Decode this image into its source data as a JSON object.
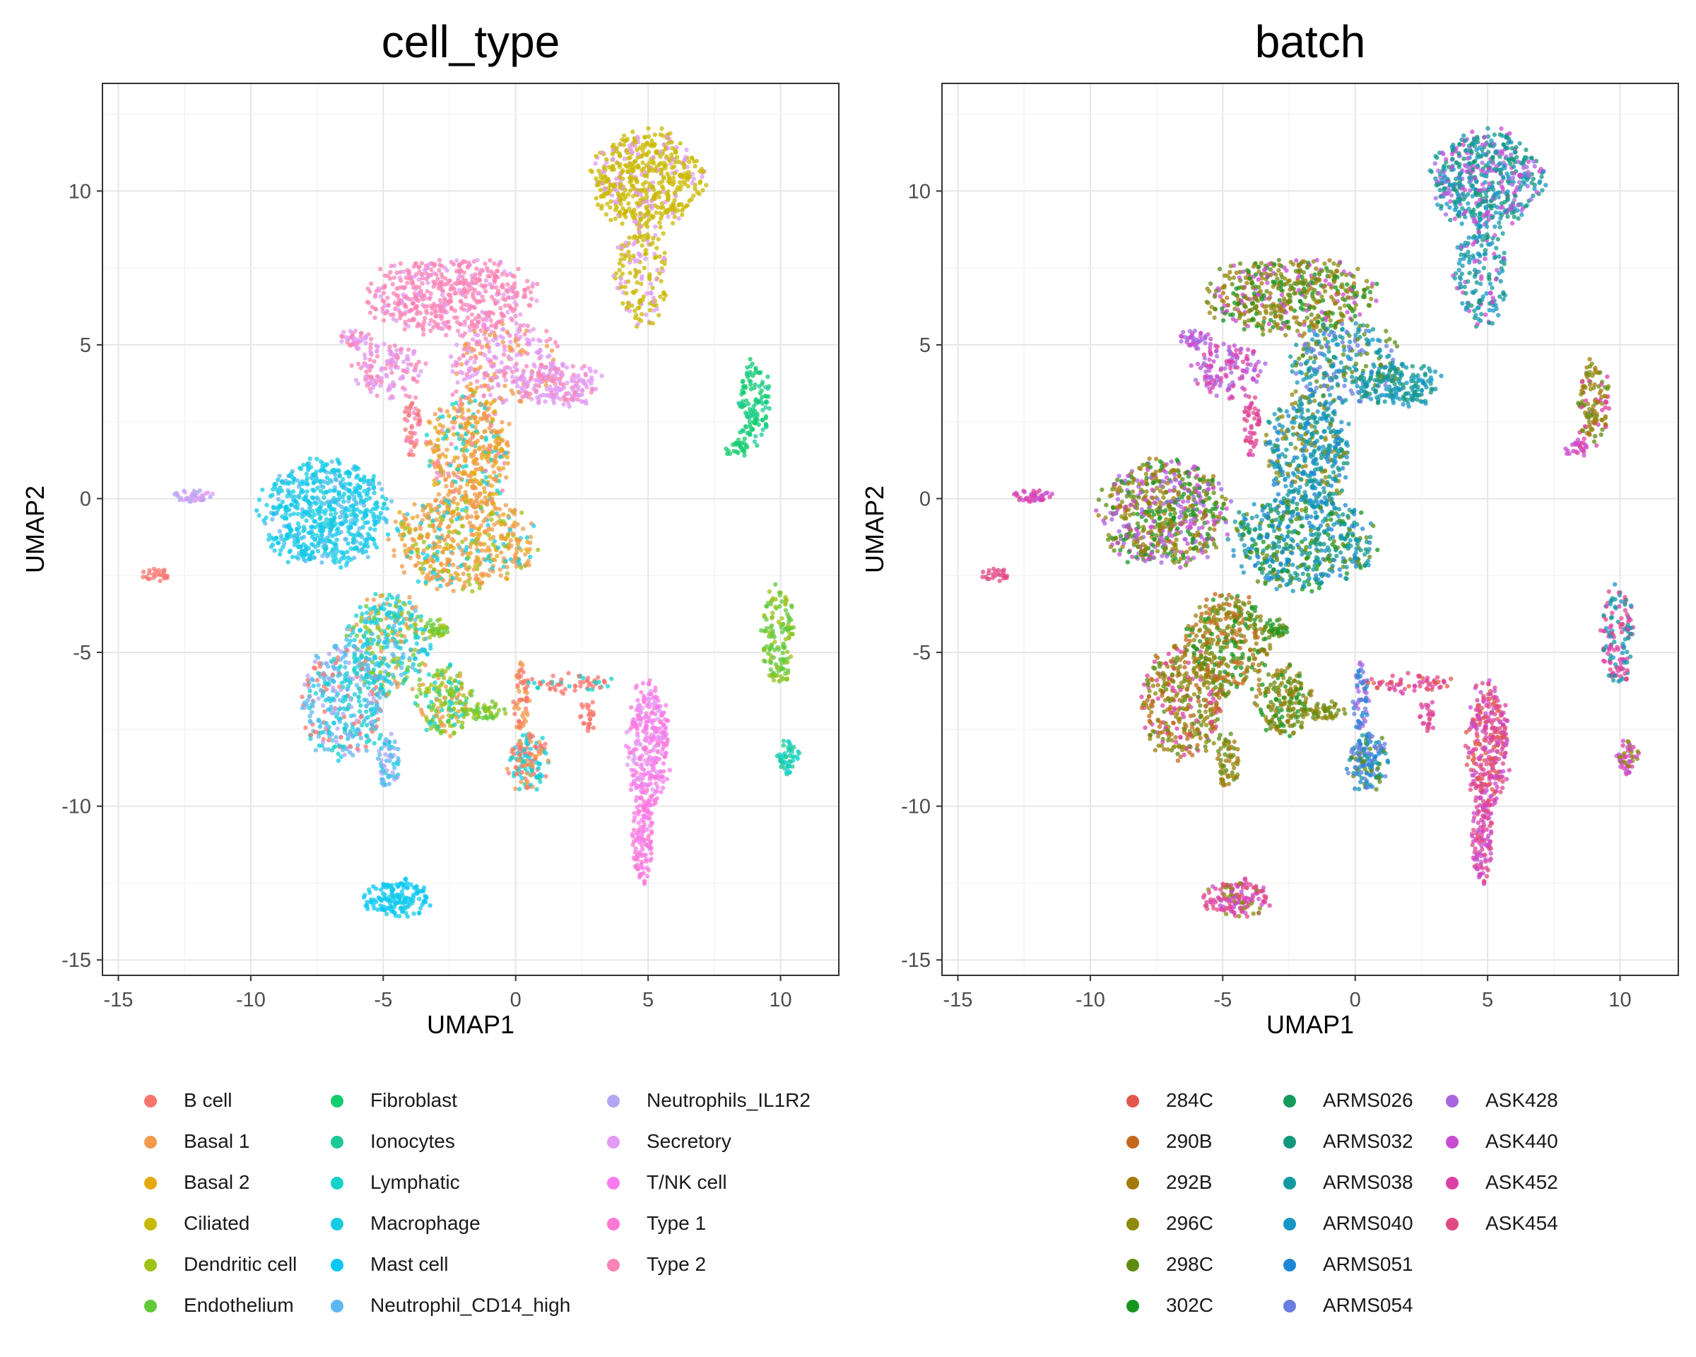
{
  "chart_data": [
    {
      "type": "scatter",
      "title": "cell_type",
      "xlabel": "UMAP1",
      "ylabel": "UMAP2",
      "xlim": [
        -15.6,
        12.2
      ],
      "ylim": [
        -15.5,
        13.5
      ],
      "xticks": [
        -15,
        -10,
        -5,
        0,
        5,
        10
      ],
      "yticks": [
        -15,
        -10,
        -5,
        0,
        5,
        10
      ],
      "xtick_labels": [
        "-15",
        "-10",
        "-5",
        "0",
        "5",
        "10"
      ],
      "ytick_labels": [
        "-15",
        "-10",
        "-5",
        "0",
        "5",
        "10"
      ],
      "grid": true,
      "legend_position": "bottom",
      "legend_columns": [
        [
          {
            "name": "B cell",
            "color": "#F8766D"
          },
          {
            "name": "Basal 1",
            "color": "#F2994A"
          },
          {
            "name": "Basal 2",
            "color": "#E5A910"
          },
          {
            "name": "Ciliated",
            "color": "#C9B800"
          },
          {
            "name": "Dendritic cell",
            "color": "#9FC217"
          },
          {
            "name": "Endothelium",
            "color": "#62C939"
          }
        ],
        [
          {
            "name": "Fibroblast",
            "color": "#13CC6E"
          },
          {
            "name": "Ionocytes",
            "color": "#1CC999"
          },
          {
            "name": "Lymphatic",
            "color": "#14D2C9"
          },
          {
            "name": "Macrophage",
            "color": "#17CBE3"
          },
          {
            "name": "Mast cell",
            "color": "#09C7F4"
          },
          {
            "name": "Neutrophil_CD14_high",
            "color": "#5BB8EE"
          }
        ],
        [
          {
            "name": "Neutrophils_IL1R2",
            "color": "#B4A6F3"
          },
          {
            "name": "Secretory",
            "color": "#E29AF2"
          },
          {
            "name": "T/NK cell",
            "color": "#FA7BEE"
          },
          {
            "name": "Type 1",
            "color": "#FA79D4"
          },
          {
            "name": "Type 2",
            "color": "#F984B6"
          }
        ]
      ],
      "clusters": [
        {
          "cx": 5.0,
          "cy": 10.4,
          "rx": 2.0,
          "ry": 1.5,
          "n": 520,
          "colors": [
            "#C9B800",
            "#C9B800",
            "#C9B800",
            "#C9B800",
            "#E29AF2"
          ]
        },
        {
          "cx": 4.8,
          "cy": 7.4,
          "rx": 1.0,
          "ry": 1.7,
          "n": 170,
          "colors": [
            "#C9B800",
            "#C9B800",
            "#E29AF2"
          ]
        },
        {
          "cx": -2.5,
          "cy": 6.6,
          "rx": 3.1,
          "ry": 1.2,
          "n": 520,
          "colors": [
            "#F984B6",
            "#F984B6",
            "#F984B6",
            "#F984B6",
            "#E29AF2"
          ]
        },
        {
          "cx": -0.4,
          "cy": 4.4,
          "rx": 2.0,
          "ry": 1.3,
          "n": 280,
          "colors": [
            "#E29AF2",
            "#E29AF2",
            "#F984B6",
            "#F2994A"
          ]
        },
        {
          "cx": 1.6,
          "cy": 3.7,
          "rx": 1.6,
          "ry": 0.7,
          "n": 170,
          "colors": [
            "#E29AF2",
            "#E29AF2",
            "#E29AF2",
            "#F984B6"
          ]
        },
        {
          "cx": -4.8,
          "cy": 4.2,
          "rx": 1.3,
          "ry": 0.9,
          "n": 130,
          "colors": [
            "#F984B6",
            "#E29AF2"
          ]
        },
        {
          "cx": -6.0,
          "cy": 5.2,
          "rx": 0.6,
          "ry": 0.3,
          "n": 40,
          "colors": [
            "#F984B6",
            "#E29AF2"
          ]
        },
        {
          "cx": -1.8,
          "cy": 1.6,
          "rx": 1.5,
          "ry": 1.9,
          "n": 420,
          "colors": [
            "#F2994A",
            "#F2994A",
            "#F2994A",
            "#E5A910",
            "#E5A910",
            "#F984B6",
            "#14D2C9"
          ]
        },
        {
          "cx": -2.0,
          "cy": -1.4,
          "rx": 2.6,
          "ry": 1.5,
          "n": 520,
          "colors": [
            "#F2994A",
            "#F2994A",
            "#F2994A",
            "#E5A910",
            "#17CBE3",
            "#9FC217"
          ]
        },
        {
          "cx": -3.9,
          "cy": 2.4,
          "rx": 0.3,
          "ry": 0.9,
          "n": 50,
          "colors": [
            "#F8766D",
            "#F984B6"
          ]
        },
        {
          "cx": -7.2,
          "cy": -0.5,
          "rx": 2.3,
          "ry": 1.7,
          "n": 650,
          "colors": [
            "#17CBE3",
            "#17CBE3",
            "#17CBE3",
            "#17CBE3",
            "#09C7F4",
            "#5BB8EE"
          ]
        },
        {
          "cx": -4.8,
          "cy": -4.7,
          "rx": 1.5,
          "ry": 1.6,
          "n": 340,
          "colors": [
            "#17CBE3",
            "#17CBE3",
            "#62C939",
            "#9FC217",
            "#14D2C9",
            "#F2994A",
            "#5BB8EE"
          ]
        },
        {
          "cx": -6.5,
          "cy": -6.6,
          "rx": 1.5,
          "ry": 1.8,
          "n": 380,
          "colors": [
            "#5BB8EE",
            "#5BB8EE",
            "#17CBE3",
            "#14D2C9",
            "#F8766D",
            "#B4A6F3"
          ]
        },
        {
          "cx": -4.8,
          "cy": -8.6,
          "rx": 0.4,
          "ry": 0.9,
          "n": 60,
          "colors": [
            "#5BB8EE",
            "#17CBE3",
            "#B4A6F3"
          ]
        },
        {
          "cx": -2.7,
          "cy": -6.6,
          "rx": 1.0,
          "ry": 1.1,
          "n": 180,
          "colors": [
            "#62C939",
            "#9FC217",
            "#9FC217",
            "#14D2C9",
            "#F2994A"
          ]
        },
        {
          "cx": -1.2,
          "cy": -6.9,
          "rx": 0.8,
          "ry": 0.3,
          "n": 50,
          "colors": [
            "#9FC217",
            "#62C939"
          ]
        },
        {
          "cx": -3.0,
          "cy": -4.2,
          "rx": 0.5,
          "ry": 0.3,
          "n": 35,
          "colors": [
            "#62C939",
            "#9FC217"
          ]
        },
        {
          "cx": 0.5,
          "cy": -8.6,
          "rx": 0.8,
          "ry": 0.9,
          "n": 150,
          "colors": [
            "#F2994A",
            "#F8766D",
            "#14D2C9",
            "#17CBE3"
          ]
        },
        {
          "cx": 0.2,
          "cy": -6.5,
          "rx": 0.3,
          "ry": 1.2,
          "n": 60,
          "colors": [
            "#F8766D",
            "#F2994A"
          ]
        },
        {
          "cx": 2.0,
          "cy": -6.0,
          "rx": 1.6,
          "ry": 0.3,
          "n": 60,
          "colors": [
            "#F8766D",
            "#F8766D",
            "#14D2C9"
          ]
        },
        {
          "cx": 2.7,
          "cy": -7.0,
          "rx": 0.3,
          "ry": 0.6,
          "n": 25,
          "colors": [
            "#F8766D"
          ]
        },
        {
          "cx": 5.0,
          "cy": -8.0,
          "rx": 0.8,
          "ry": 2.0,
          "n": 300,
          "colors": [
            "#FA7BEE",
            "#FA7BEE",
            "#FA79D4",
            "#E29AF2"
          ]
        },
        {
          "cx": 4.8,
          "cy": -11.0,
          "rx": 0.4,
          "ry": 1.5,
          "n": 120,
          "colors": [
            "#FA7BEE",
            "#FA79D4"
          ]
        },
        {
          "cx": -4.5,
          "cy": -13.0,
          "rx": 1.2,
          "ry": 0.6,
          "n": 150,
          "colors": [
            "#09C7F4",
            "#09C7F4",
            "#17CBE3"
          ]
        },
        {
          "cx": 9.0,
          "cy": 3.1,
          "rx": 0.6,
          "ry": 1.3,
          "n": 120,
          "colors": [
            "#13CC6E",
            "#13CC6E",
            "#1CC999"
          ]
        },
        {
          "cx": 8.4,
          "cy": 1.6,
          "rx": 0.5,
          "ry": 0.3,
          "n": 25,
          "colors": [
            "#13CC6E"
          ]
        },
        {
          "cx": 9.9,
          "cy": -4.5,
          "rx": 0.6,
          "ry": 1.6,
          "n": 140,
          "colors": [
            "#62C939",
            "#62C939",
            "#9FC217"
          ]
        },
        {
          "cx": 10.3,
          "cy": -8.4,
          "rx": 0.4,
          "ry": 0.6,
          "n": 50,
          "colors": [
            "#14D2C9",
            "#1CC999"
          ]
        },
        {
          "cx": -12.2,
          "cy": 0.1,
          "rx": 0.9,
          "ry": 0.2,
          "n": 40,
          "colors": [
            "#E29AF2",
            "#B4A6F3"
          ]
        },
        {
          "cx": -13.6,
          "cy": -2.5,
          "rx": 0.6,
          "ry": 0.2,
          "n": 25,
          "colors": [
            "#F8766D"
          ]
        }
      ]
    },
    {
      "type": "scatter",
      "title": "batch",
      "xlabel": "UMAP1",
      "ylabel": "UMAP2",
      "xlim": [
        -15.6,
        12.2
      ],
      "ylim": [
        -15.5,
        13.5
      ],
      "xticks": [
        -15,
        -10,
        -5,
        0,
        5,
        10
      ],
      "yticks": [
        -15,
        -10,
        -5,
        0,
        5,
        10
      ],
      "xtick_labels": [
        "-15",
        "-10",
        "-5",
        "0",
        "5",
        "10"
      ],
      "ytick_labels": [
        "-15",
        "-10",
        "-5",
        "0",
        "5",
        "10"
      ],
      "grid": true,
      "legend_position": "bottom",
      "legend_columns": [
        [
          {
            "name": "284C",
            "color": "#E2574C"
          },
          {
            "name": "290B",
            "color": "#C4671B"
          },
          {
            "name": "292B",
            "color": "#A57A0B"
          },
          {
            "name": "296C",
            "color": "#8D8A0E"
          },
          {
            "name": "298C",
            "color": "#5E8C12"
          },
          {
            "name": "302C",
            "color": "#16961E"
          }
        ],
        [
          {
            "name": "ARMS026",
            "color": "#149B5A"
          },
          {
            "name": "ARMS032",
            "color": "#12977D"
          },
          {
            "name": "ARMS038",
            "color": "#119AA2"
          },
          {
            "name": "ARMS040",
            "color": "#1597C6"
          },
          {
            "name": "ARMS051",
            "color": "#1E86D6"
          },
          {
            "name": "ARMS054",
            "color": "#6A7EE2"
          }
        ],
        [
          {
            "name": "ASK428",
            "color": "#A766E0"
          },
          {
            "name": "ASK440",
            "color": "#C94BD2"
          },
          {
            "name": "ASK452",
            "color": "#DC40A5"
          },
          {
            "name": "ASK454",
            "color": "#E04A84"
          }
        ]
      ],
      "clusters": [
        {
          "cx": 5.0,
          "cy": 10.4,
          "rx": 2.0,
          "ry": 1.5,
          "n": 520,
          "colors": [
            "#12977D",
            "#119AA2",
            "#1597C6",
            "#C94BD2",
            "#A766E0",
            "#12977D"
          ]
        },
        {
          "cx": 4.8,
          "cy": 7.4,
          "rx": 1.0,
          "ry": 1.7,
          "n": 170,
          "colors": [
            "#12977D",
            "#119AA2",
            "#1597C6",
            "#C94BD2"
          ]
        },
        {
          "cx": -2.5,
          "cy": 6.6,
          "rx": 3.1,
          "ry": 1.2,
          "n": 520,
          "colors": [
            "#5E8C12",
            "#8D8A0E",
            "#A57A0B",
            "#16961E",
            "#C94BD2"
          ]
        },
        {
          "cx": -0.4,
          "cy": 4.4,
          "rx": 2.0,
          "ry": 1.3,
          "n": 280,
          "colors": [
            "#1597C6",
            "#119AA2",
            "#5E8C12",
            "#6A7EE2"
          ]
        },
        {
          "cx": 1.6,
          "cy": 3.7,
          "rx": 1.6,
          "ry": 0.7,
          "n": 170,
          "colors": [
            "#1597C6",
            "#119AA2",
            "#12977D"
          ]
        },
        {
          "cx": -4.8,
          "cy": 4.2,
          "rx": 1.3,
          "ry": 0.9,
          "n": 130,
          "colors": [
            "#C94BD2",
            "#A766E0",
            "#DC40A5"
          ]
        },
        {
          "cx": -6.0,
          "cy": 5.2,
          "rx": 0.6,
          "ry": 0.3,
          "n": 40,
          "colors": [
            "#C94BD2",
            "#A766E0"
          ]
        },
        {
          "cx": -1.8,
          "cy": 1.6,
          "rx": 1.5,
          "ry": 1.9,
          "n": 420,
          "colors": [
            "#1597C6",
            "#119AA2",
            "#1E86D6",
            "#12977D",
            "#8D8A0E"
          ]
        },
        {
          "cx": -2.0,
          "cy": -1.4,
          "rx": 2.6,
          "ry": 1.5,
          "n": 520,
          "colors": [
            "#1597C6",
            "#119AA2",
            "#1E86D6",
            "#12977D",
            "#5E8C12",
            "#16961E"
          ]
        },
        {
          "cx": -3.9,
          "cy": 2.4,
          "rx": 0.3,
          "ry": 0.9,
          "n": 50,
          "colors": [
            "#DC40A5",
            "#E04A84"
          ]
        },
        {
          "cx": -7.2,
          "cy": -0.5,
          "rx": 2.3,
          "ry": 1.7,
          "n": 650,
          "colors": [
            "#5E8C12",
            "#8D8A0E",
            "#16961E",
            "#A57A0B",
            "#C94BD2",
            "#A766E0"
          ]
        },
        {
          "cx": -4.8,
          "cy": -4.7,
          "rx": 1.5,
          "ry": 1.6,
          "n": 340,
          "colors": [
            "#8D8A0E",
            "#A57A0B",
            "#5E8C12",
            "#C4671B",
            "#16961E"
          ]
        },
        {
          "cx": -6.5,
          "cy": -6.6,
          "rx": 1.5,
          "ry": 1.8,
          "n": 380,
          "colors": [
            "#A57A0B",
            "#C4671B",
            "#8D8A0E",
            "#5E8C12",
            "#DC40A5"
          ]
        },
        {
          "cx": -4.8,
          "cy": -8.6,
          "rx": 0.4,
          "ry": 0.9,
          "n": 60,
          "colors": [
            "#A57A0B",
            "#8D8A0E",
            "#5E8C12"
          ]
        },
        {
          "cx": -2.7,
          "cy": -6.6,
          "rx": 1.0,
          "ry": 1.1,
          "n": 180,
          "colors": [
            "#A57A0B",
            "#8D8A0E",
            "#5E8C12",
            "#16961E"
          ]
        },
        {
          "cx": -1.2,
          "cy": -6.9,
          "rx": 0.8,
          "ry": 0.3,
          "n": 50,
          "colors": [
            "#5E8C12",
            "#8D8A0E"
          ]
        },
        {
          "cx": -3.0,
          "cy": -4.2,
          "rx": 0.5,
          "ry": 0.3,
          "n": 35,
          "colors": [
            "#16961E",
            "#5E8C12"
          ]
        },
        {
          "cx": 0.5,
          "cy": -8.6,
          "rx": 0.8,
          "ry": 0.9,
          "n": 150,
          "colors": [
            "#1E86D6",
            "#6A7EE2",
            "#5E8C12",
            "#119AA2"
          ]
        },
        {
          "cx": 0.2,
          "cy": -6.5,
          "rx": 0.3,
          "ry": 1.2,
          "n": 60,
          "colors": [
            "#6A7EE2",
            "#1E86D6",
            "#A766E0"
          ]
        },
        {
          "cx": 2.0,
          "cy": -6.0,
          "rx": 1.6,
          "ry": 0.3,
          "n": 60,
          "colors": [
            "#DC40A5",
            "#E04A84",
            "#E2574C"
          ]
        },
        {
          "cx": 2.7,
          "cy": -7.0,
          "rx": 0.3,
          "ry": 0.6,
          "n": 25,
          "colors": [
            "#E04A84",
            "#DC40A5"
          ]
        },
        {
          "cx": 5.0,
          "cy": -8.0,
          "rx": 0.8,
          "ry": 2.0,
          "n": 300,
          "colors": [
            "#DC40A5",
            "#E04A84",
            "#C94BD2",
            "#E2574C"
          ]
        },
        {
          "cx": 4.8,
          "cy": -11.0,
          "rx": 0.4,
          "ry": 1.5,
          "n": 120,
          "colors": [
            "#DC40A5",
            "#E04A84",
            "#C94BD2"
          ]
        },
        {
          "cx": -4.5,
          "cy": -13.0,
          "rx": 1.2,
          "ry": 0.6,
          "n": 150,
          "colors": [
            "#DC40A5",
            "#E04A84",
            "#C94BD2",
            "#8D8A0E"
          ]
        },
        {
          "cx": 9.0,
          "cy": 3.1,
          "rx": 0.6,
          "ry": 1.3,
          "n": 120,
          "colors": [
            "#8D8A0E",
            "#A57A0B",
            "#DC40A5",
            "#5E8C12"
          ]
        },
        {
          "cx": 8.4,
          "cy": 1.6,
          "rx": 0.5,
          "ry": 0.3,
          "n": 25,
          "colors": [
            "#DC40A5",
            "#C94BD2"
          ]
        },
        {
          "cx": 9.9,
          "cy": -4.5,
          "rx": 0.6,
          "ry": 1.6,
          "n": 140,
          "colors": [
            "#1597C6",
            "#DC40A5",
            "#E04A84",
            "#119AA2"
          ]
        },
        {
          "cx": 10.3,
          "cy": -8.4,
          "rx": 0.4,
          "ry": 0.6,
          "n": 50,
          "colors": [
            "#8D8A0E",
            "#C94BD2",
            "#DC40A5"
          ]
        },
        {
          "cx": -12.2,
          "cy": 0.1,
          "rx": 0.9,
          "ry": 0.2,
          "n": 40,
          "colors": [
            "#C94BD2",
            "#DC40A5"
          ]
        },
        {
          "cx": -13.6,
          "cy": -2.5,
          "rx": 0.6,
          "ry": 0.2,
          "n": 25,
          "colors": [
            "#E04A84"
          ]
        }
      ]
    }
  ]
}
